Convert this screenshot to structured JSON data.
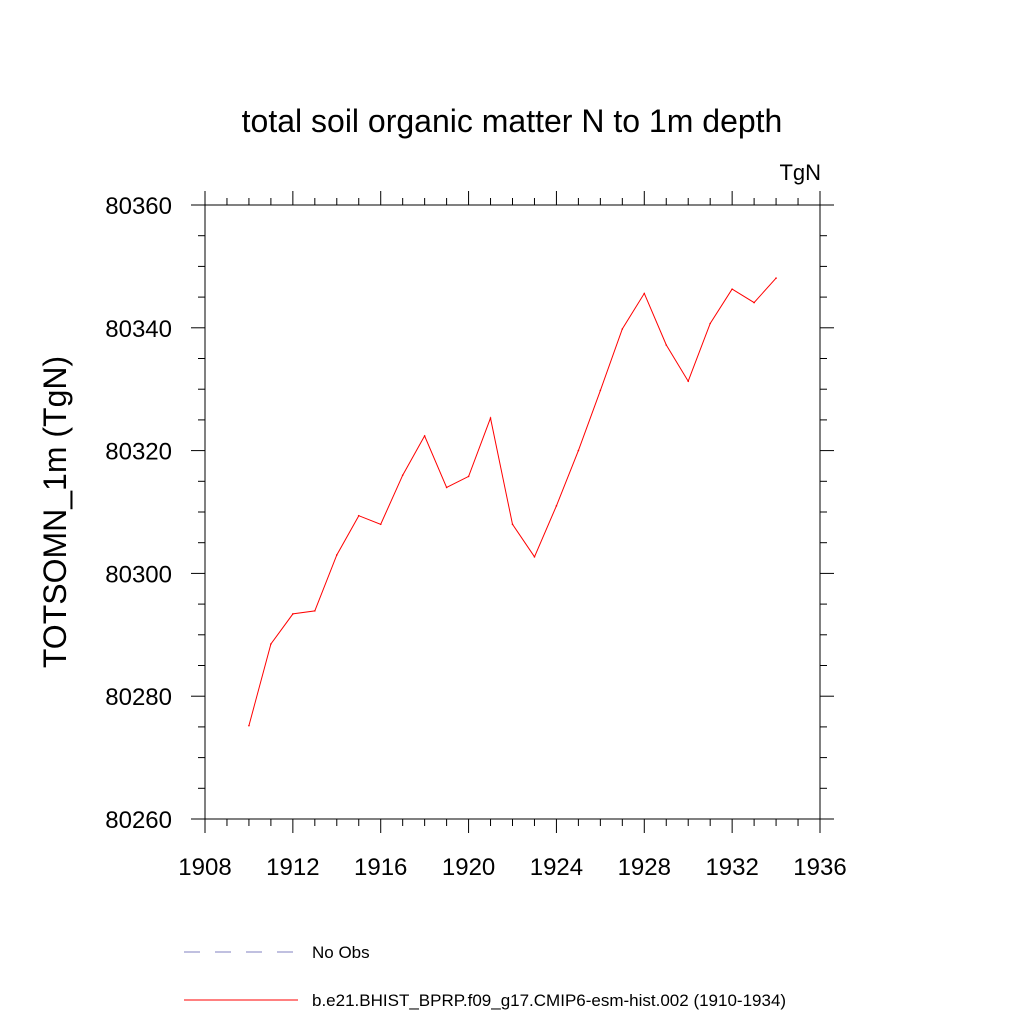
{
  "chart_data": {
    "type": "line",
    "title": "total soil organic matter N to 1m depth",
    "units_label": "TgN",
    "ylabel": "TOTSOMN_1m  (TgN)",
    "xlabel": "",
    "xlim": [
      1908,
      1936
    ],
    "ylim": [
      80260,
      80360
    ],
    "x_ticks": [
      1908,
      1912,
      1916,
      1920,
      1924,
      1928,
      1932,
      1936
    ],
    "y_ticks": [
      80260,
      80280,
      80300,
      80320,
      80340,
      80360
    ],
    "grid": false,
    "legend_position": "bottom",
    "series": [
      {
        "name": "b.e21.BHIST_BPRP.f09_g17.CMIP6-esm-hist.002 (1910-1934)",
        "color": "#ff0000",
        "dash": "solid",
        "x": [
          1910,
          1911,
          1912,
          1913,
          1914,
          1915,
          1916,
          1917,
          1918,
          1919,
          1920,
          1921,
          1922,
          1923,
          1924,
          1925,
          1926,
          1927,
          1928,
          1929,
          1930,
          1931,
          1932,
          1933,
          1934
        ],
        "values": [
          80275.2,
          80288.5,
          80293.4,
          80293.9,
          80303.0,
          80309.4,
          80308.0,
          80316.0,
          80322.4,
          80314.0,
          80315.8,
          80325.3,
          80308.0,
          80302.7,
          80311.0,
          80320.0,
          80329.8,
          80339.8,
          80345.6,
          80337.2,
          80331.3,
          80340.7,
          80346.3,
          80344.1,
          80348.1
        ]
      }
    ],
    "legend": [
      {
        "label": "No Obs",
        "color": "#8080c0",
        "dash": "dashed"
      },
      {
        "label": "b.e21.BHIST_BPRP.f09_g17.CMIP6-esm-hist.002 (1910-1934)",
        "color": "#ff0000",
        "dash": "solid"
      }
    ]
  }
}
